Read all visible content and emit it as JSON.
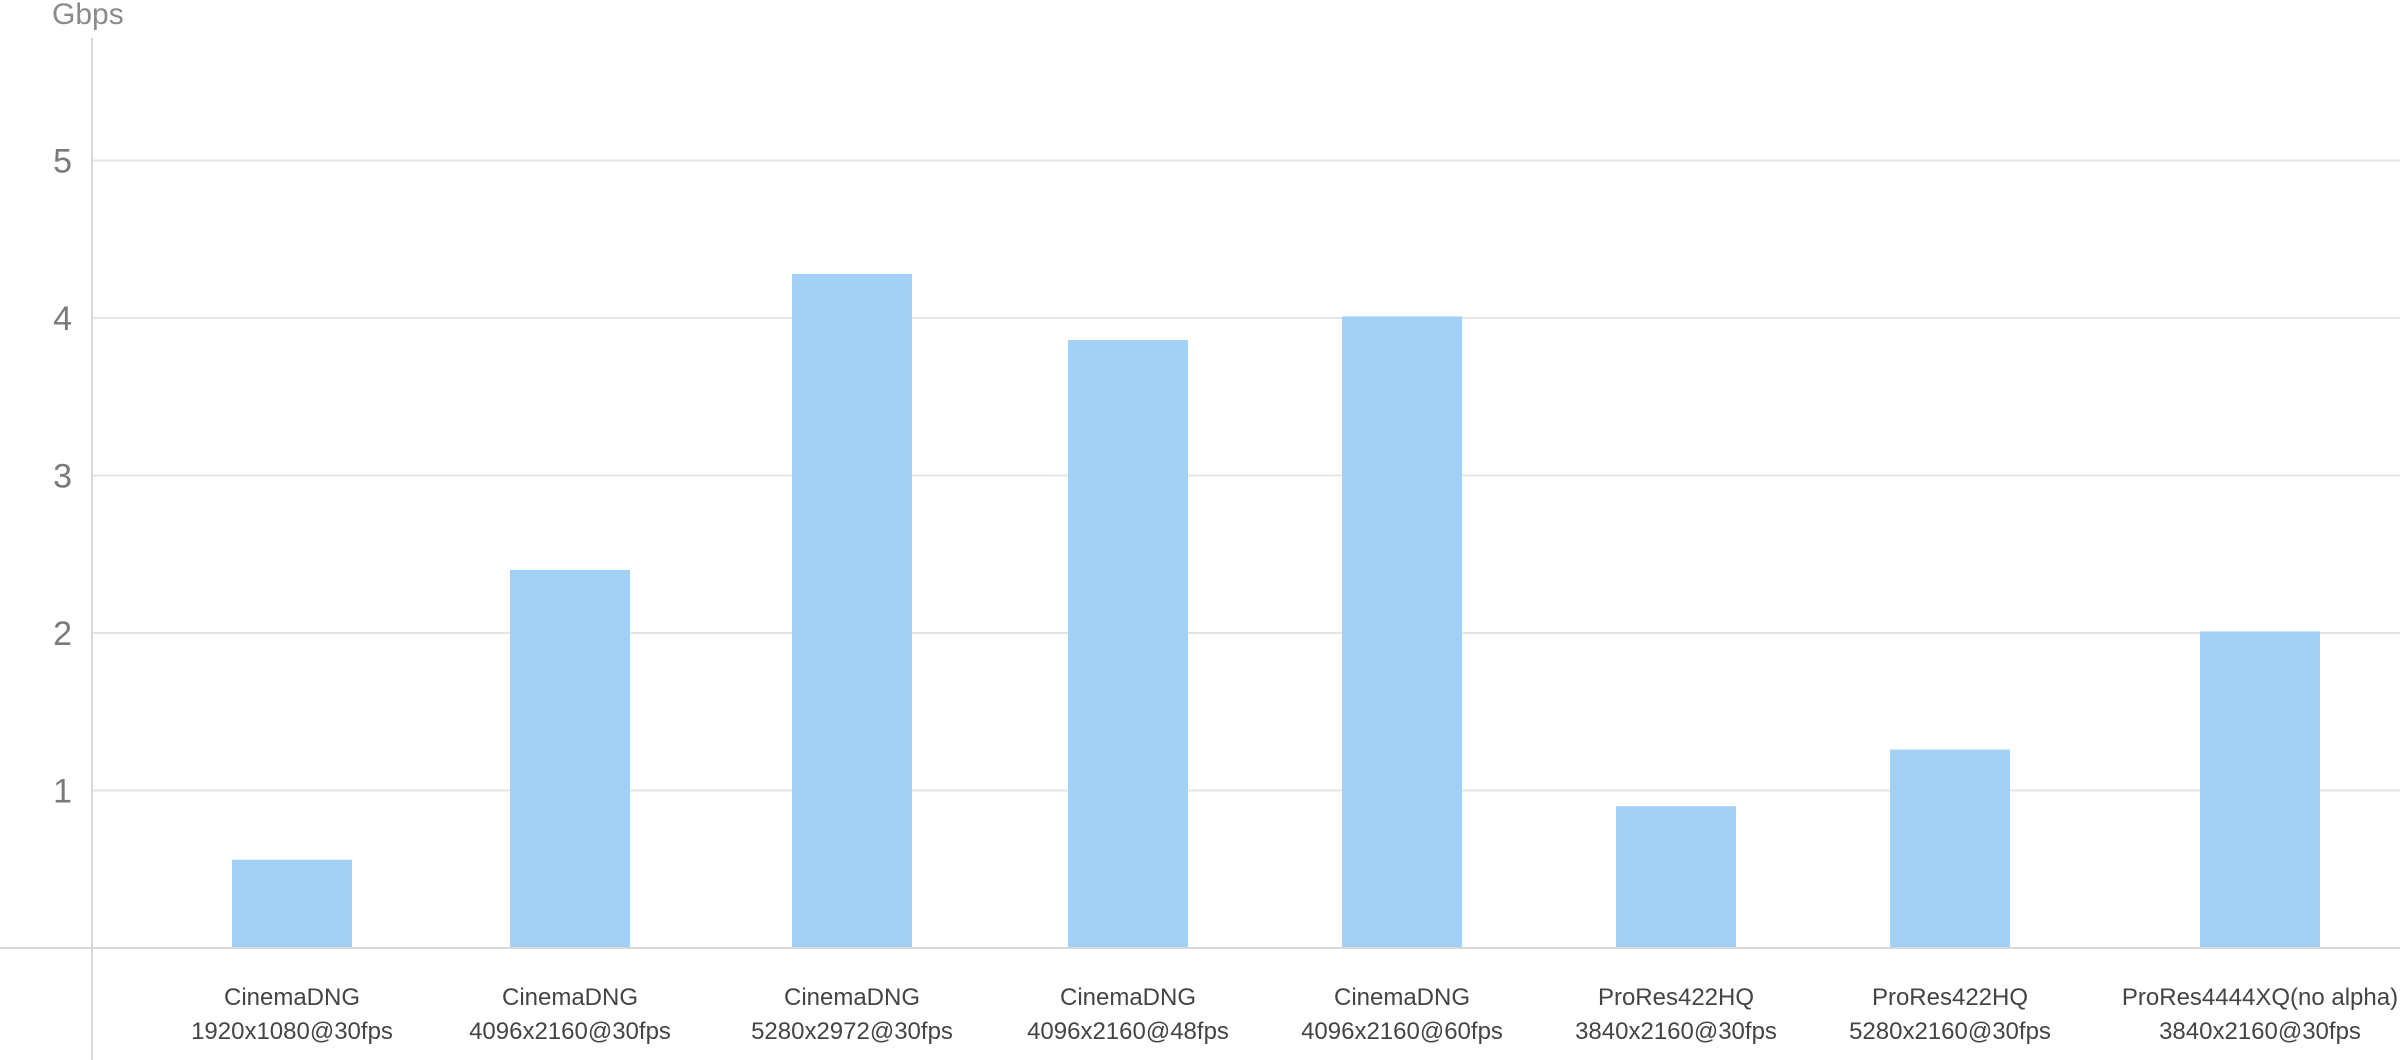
{
  "chart_data": {
    "type": "bar",
    "ylabel": "Gbps",
    "ylim": [
      0,
      5.8
    ],
    "yticks": [
      1,
      2,
      3,
      4,
      5
    ],
    "grid": true,
    "bar_color": "#a3d1f6",
    "categories": [
      [
        "CinemaDNG",
        "1920x1080@30fps"
      ],
      [
        "CinemaDNG",
        "4096x2160@30fps"
      ],
      [
        "CinemaDNG",
        "5280x2972@30fps"
      ],
      [
        "CinemaDNG",
        "4096x2160@48fps"
      ],
      [
        "CinemaDNG",
        "4096x2160@60fps"
      ],
      [
        "ProRes422HQ",
        "3840x2160@30fps"
      ],
      [
        "ProRes422HQ",
        "5280x2160@30fps"
      ],
      [
        "ProRes4444XQ(no alpha)",
        "3840x2160@30fps"
      ]
    ],
    "values": [
      0.56,
      2.4,
      4.28,
      3.86,
      4.01,
      0.9,
      1.26,
      2.01
    ]
  }
}
